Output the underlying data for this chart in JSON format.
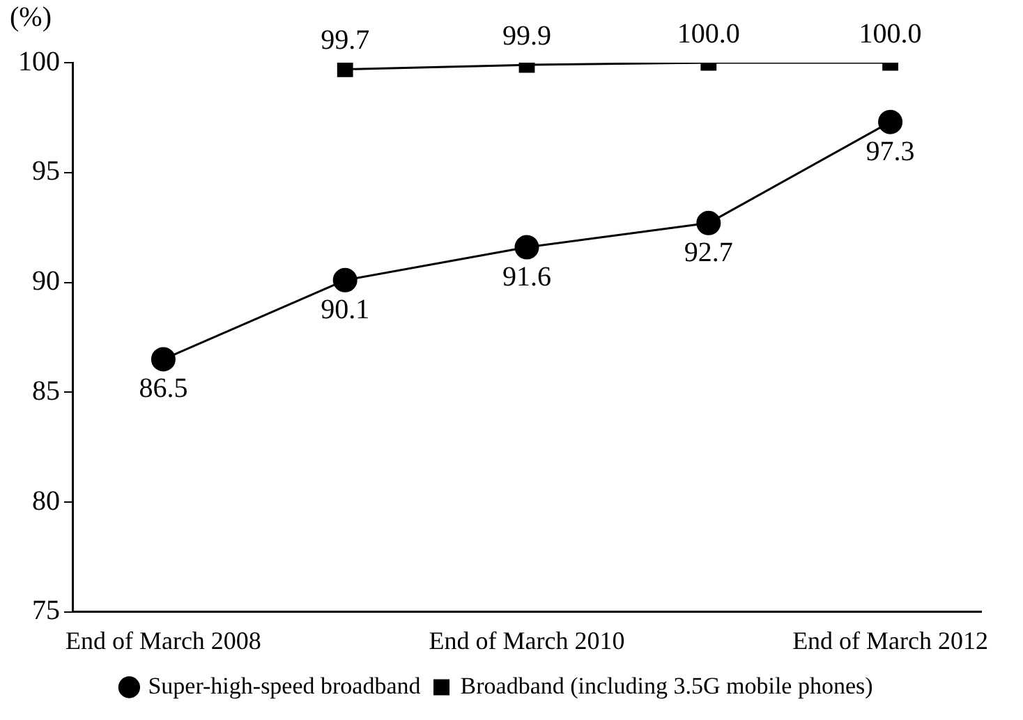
{
  "chart_data": {
    "type": "line",
    "ylabel": "(%)",
    "categories": [
      "End of March 2008",
      null,
      "End of March 2010",
      null,
      "End of March 2012"
    ],
    "series": [
      {
        "name": "Super-high-speed broadband",
        "color": "#000000",
        "marker": "circle",
        "values": [
          86.5,
          90.1,
          91.6,
          92.7,
          97.3
        ],
        "value_labels": [
          "86.5",
          "90.1",
          "91.6",
          "92.7",
          "97.3"
        ]
      },
      {
        "name": "Broadband (including 3.5G mobile phones)",
        "color": "#000000",
        "marker": "square",
        "values": [
          null,
          99.7,
          99.9,
          100.0,
          100.0
        ],
        "value_labels": [
          null,
          "99.7",
          "99.9",
          "100.0",
          "100.0"
        ]
      }
    ],
    "ylim": [
      75,
      100
    ],
    "yticks": [
      75,
      80,
      85,
      90,
      95,
      100
    ],
    "grid": false,
    "legend": "bottom",
    "line_style": "solid"
  }
}
